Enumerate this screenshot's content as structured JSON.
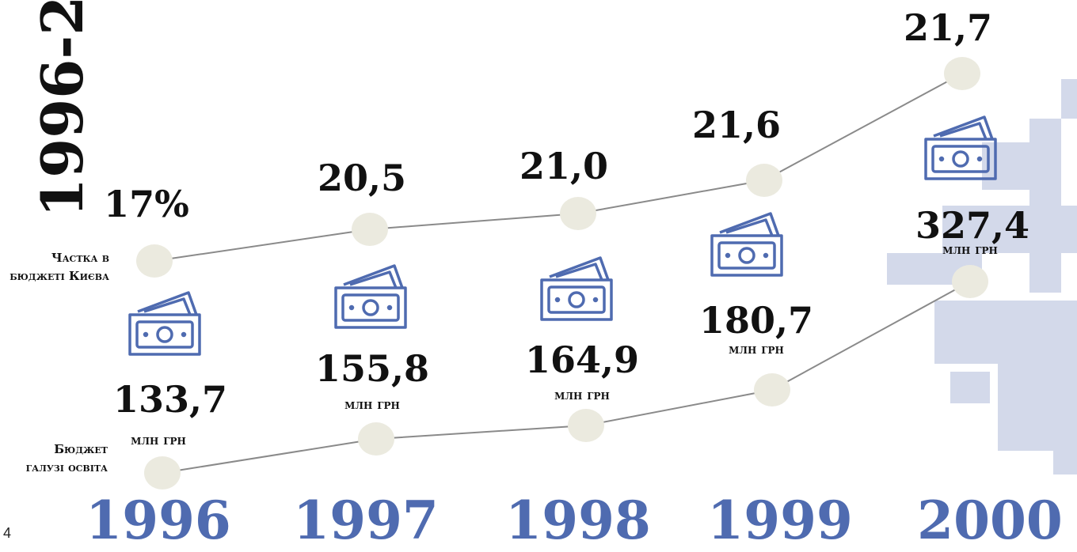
{
  "title": "1996-2",
  "page_number": "4",
  "row_labels": {
    "share": "Частка в бюджеті Києва",
    "budget": "Бюджет галузі освіта"
  },
  "unit": "млн грн",
  "years": [
    {
      "year": "1996",
      "share": "17%",
      "budget": "133,7"
    },
    {
      "year": "1997",
      "share": "20,5",
      "budget": "155,8"
    },
    {
      "year": "1998",
      "share": "21,0",
      "budget": "164,9"
    },
    {
      "year": "1999",
      "share": "21,6",
      "budget": "180,7"
    },
    {
      "year": "2000",
      "share": "21,7",
      "budget": "327,4"
    }
  ]
}
